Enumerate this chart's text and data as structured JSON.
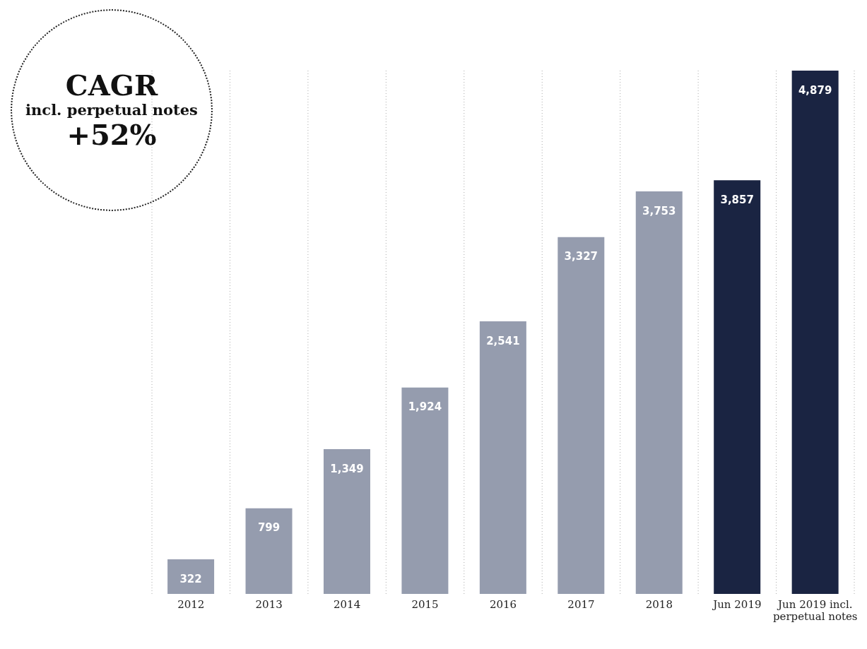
{
  "chart_data": {
    "type": "bar",
    "categories": [
      "2012",
      "2013",
      "2014",
      "2015",
      "2016",
      "2017",
      "2018",
      "Jun 2019",
      "Jun 2019 incl. perpetual notes"
    ],
    "values": [
      322,
      799,
      1349,
      1924,
      2541,
      3327,
      3753,
      3857,
      4879
    ],
    "colors": [
      "#959cae",
      "#959cae",
      "#959cae",
      "#959cae",
      "#959cae",
      "#959cae",
      "#959cae",
      "#1a2442",
      "#1a2442"
    ],
    "value_labels": [
      "322",
      "799",
      "1,349",
      "1,924",
      "2,541",
      "3,327",
      "3,753",
      "3,857",
      "4,879"
    ],
    "grid": "x",
    "annotations": [
      "CAGR",
      "incl. perpetual notes",
      "+52%"
    ]
  }
}
